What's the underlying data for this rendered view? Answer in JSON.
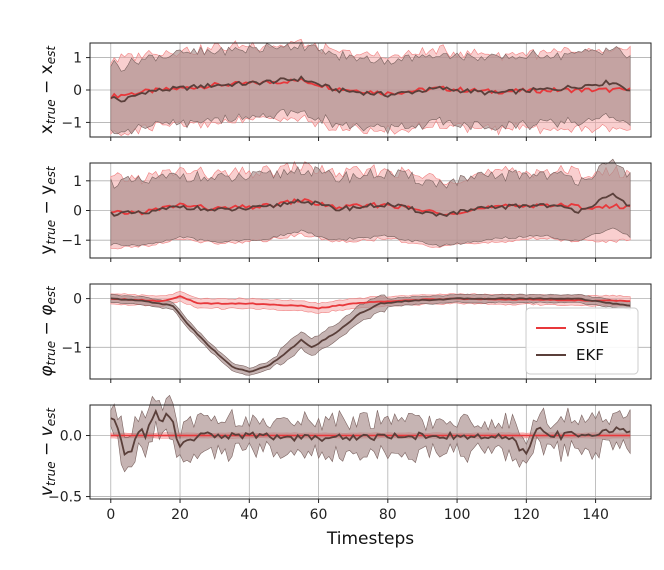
{
  "chart_data": [
    {
      "type": "line",
      "ylabel": "x_true − x_est",
      "ylabel_main": "x",
      "ylabel_sub1": "true",
      "ylabel_mid": " − x",
      "ylabel_sub2": "est",
      "ylim": [
        -1.45,
        1.45
      ],
      "yticks": [
        -1,
        0,
        1
      ],
      "ytick_labels": [
        "−1",
        "0",
        "1"
      ],
      "series": [
        {
          "name": "SSIE",
          "color": "#e8383b",
          "mean_points": [
            [
              0,
              -0.2
            ],
            [
              10,
              -0.05
            ],
            [
              20,
              0.05
            ],
            [
              30,
              0.15
            ],
            [
              40,
              0.2
            ],
            [
              55,
              0.3
            ],
            [
              65,
              0.05
            ],
            [
              80,
              -0.1
            ],
            [
              95,
              0.05
            ],
            [
              110,
              -0.05
            ],
            [
              130,
              0.0
            ],
            [
              150,
              0.0
            ]
          ],
          "band_halfwidth": 1.15
        },
        {
          "name": "EKF",
          "color": "#5a3f3a",
          "mean_points": [
            [
              0,
              -0.2
            ],
            [
              3,
              -0.35
            ],
            [
              10,
              -0.05
            ],
            [
              20,
              0.05
            ],
            [
              30,
              0.15
            ],
            [
              40,
              0.2
            ],
            [
              55,
              0.35
            ],
            [
              65,
              0.0
            ],
            [
              80,
              -0.15
            ],
            [
              95,
              0.05
            ],
            [
              110,
              -0.1
            ],
            [
              130,
              0.05
            ],
            [
              145,
              0.25
            ],
            [
              150,
              0.0
            ]
          ],
          "band_halfwidth": 1.05
        }
      ]
    },
    {
      "type": "line",
      "ylabel": "y_true − y_est",
      "ylabel_main": "y",
      "ylabel_sub1": "true",
      "ylabel_mid": " − y",
      "ylabel_sub2": "est",
      "ylim": [
        -1.6,
        1.6
      ],
      "yticks": [
        -1,
        0,
        1
      ],
      "ytick_labels": [
        "−1",
        "0",
        "1"
      ],
      "series": [
        {
          "name": "SSIE",
          "color": "#e8383b",
          "mean_points": [
            [
              0,
              -0.1
            ],
            [
              10,
              -0.05
            ],
            [
              20,
              0.2
            ],
            [
              30,
              0.05
            ],
            [
              45,
              0.15
            ],
            [
              55,
              0.35
            ],
            [
              65,
              0.1
            ],
            [
              80,
              0.2
            ],
            [
              95,
              -0.1
            ],
            [
              110,
              0.1
            ],
            [
              125,
              0.2
            ],
            [
              140,
              0.1
            ],
            [
              150,
              0.15
            ]
          ],
          "band_halfwidth": 1.15
        },
        {
          "name": "EKF",
          "color": "#5a3f3a",
          "mean_points": [
            [
              0,
              -0.1
            ],
            [
              10,
              -0.1
            ],
            [
              20,
              0.15
            ],
            [
              30,
              0.0
            ],
            [
              45,
              0.1
            ],
            [
              55,
              0.35
            ],
            [
              65,
              0.05
            ],
            [
              80,
              0.2
            ],
            [
              95,
              -0.15
            ],
            [
              110,
              0.1
            ],
            [
              125,
              0.2
            ],
            [
              135,
              0.0
            ],
            [
              145,
              0.5
            ],
            [
              150,
              0.15
            ]
          ],
          "band_halfwidth": 1.05
        }
      ]
    },
    {
      "type": "line",
      "ylabel": "φ_true − φ_est",
      "ylabel_main": "φ",
      "ylabel_sub1": "true",
      "ylabel_mid": " − φ",
      "ylabel_sub2": "est",
      "ylim": [
        -1.65,
        0.3
      ],
      "yticks": [
        -1,
        0
      ],
      "ytick_labels": [
        "−1",
        "0"
      ],
      "legend_position": "right",
      "legend": [
        "SSIE",
        "EKF"
      ],
      "series": [
        {
          "name": "SSIE",
          "color": "#e8383b",
          "mean_points": [
            [
              0,
              0.0
            ],
            [
              15,
              -0.05
            ],
            [
              20,
              0.05
            ],
            [
              25,
              -0.1
            ],
            [
              40,
              -0.1
            ],
            [
              55,
              -0.15
            ],
            [
              60,
              -0.2
            ],
            [
              70,
              -0.1
            ],
            [
              80,
              -0.05
            ],
            [
              100,
              0.0
            ],
            [
              150,
              -0.05
            ]
          ],
          "band_halfwidth": 0.1
        },
        {
          "name": "EKF",
          "color": "#5a3f3a",
          "mean_points": [
            [
              0,
              0.0
            ],
            [
              10,
              -0.05
            ],
            [
              18,
              -0.15
            ],
            [
              22,
              -0.5
            ],
            [
              28,
              -0.95
            ],
            [
              35,
              -1.4
            ],
            [
              40,
              -1.5
            ],
            [
              45,
              -1.4
            ],
            [
              50,
              -1.15
            ],
            [
              55,
              -0.85
            ],
            [
              58,
              -1.0
            ],
            [
              65,
              -0.7
            ],
            [
              72,
              -0.3
            ],
            [
              78,
              -0.1
            ],
            [
              85,
              -0.05
            ],
            [
              100,
              0.0
            ],
            [
              120,
              0.0
            ],
            [
              135,
              0.0
            ],
            [
              150,
              -0.15
            ]
          ],
          "band_halfwidth": 0.08
        }
      ]
    },
    {
      "type": "line",
      "ylabel": "v_true − v_est",
      "ylabel_main": "v",
      "ylabel_sub1": "true",
      "ylabel_mid": " − v",
      "ylabel_sub2": "est",
      "ylim": [
        -0.52,
        0.25
      ],
      "yticks": [
        -0.5,
        0.0
      ],
      "ytick_labels": [
        "−0.5",
        "0.0"
      ],
      "xlabel": "Timesteps",
      "xlim": [
        -6,
        156
      ],
      "xticks": [
        0,
        20,
        40,
        60,
        80,
        100,
        120,
        140
      ],
      "xtick_labels": [
        "0",
        "20",
        "40",
        "60",
        "80",
        "100",
        "120",
        "140"
      ],
      "series": [
        {
          "name": "SSIE",
          "color": "#e8383b",
          "mean_points": [
            [
              0,
              0.0
            ],
            [
              150,
              0.0
            ]
          ],
          "band_halfwidth": 0.02
        },
        {
          "name": "EKF",
          "color": "#5a3f3a",
          "mean_points": [
            [
              0,
              0.15
            ],
            [
              2,
              0.05
            ],
            [
              4,
              -0.16
            ],
            [
              6,
              -0.1
            ],
            [
              8,
              0.05
            ],
            [
              10,
              0.0
            ],
            [
              13,
              0.18
            ],
            [
              15,
              0.12
            ],
            [
              17,
              0.18
            ],
            [
              20,
              -0.1
            ],
            [
              25,
              0.0
            ],
            [
              40,
              0.0
            ],
            [
              60,
              -0.02
            ],
            [
              90,
              0.0
            ],
            [
              115,
              -0.02
            ],
            [
              120,
              -0.15
            ],
            [
              123,
              0.05
            ],
            [
              130,
              0.0
            ],
            [
              140,
              0.02
            ],
            [
              150,
              0.05
            ]
          ],
          "band_halfwidth": 0.1
        }
      ]
    }
  ],
  "colors": {
    "ssie": "#e8383b",
    "ekf": "#5a3f3a",
    "ssie_band": "#f4a7a7",
    "ekf_band": "#a88c8a"
  }
}
